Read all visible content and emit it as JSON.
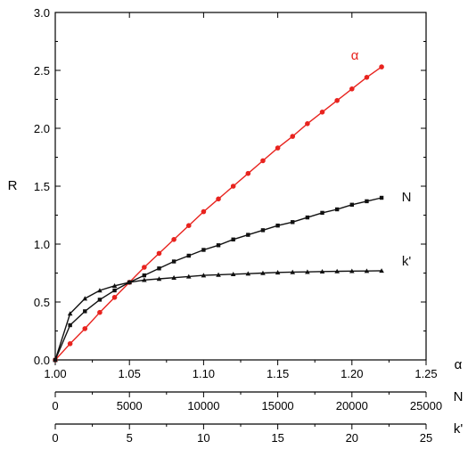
{
  "chart_data": {
    "type": "line",
    "ylabel": "R",
    "ylim": [
      0,
      3.0
    ],
    "yticks": [
      "0.0",
      "0.5",
      "1.0",
      "1.5",
      "2.0",
      "2.5",
      "3.0"
    ],
    "x_axes": [
      {
        "label": "α",
        "lim": [
          1.0,
          1.25
        ],
        "ticks": [
          "1.00",
          "1.05",
          "1.10",
          "1.15",
          "1.20",
          "1.25"
        ]
      },
      {
        "label": "N",
        "lim": [
          0,
          25000
        ],
        "ticks": [
          "0",
          "5000",
          "10000",
          "15000",
          "20000",
          "25000"
        ]
      },
      {
        "label": "k'",
        "lim": [
          0,
          25
        ],
        "ticks": [
          "0",
          "5",
          "10",
          "15",
          "20",
          "25"
        ]
      }
    ],
    "series": [
      {
        "name": "α",
        "axis": "α",
        "color": "#e8231e",
        "marker": "circle",
        "x": [
          1.0,
          1.01,
          1.02,
          1.03,
          1.04,
          1.05,
          1.06,
          1.07,
          1.08,
          1.09,
          1.1,
          1.11,
          1.12,
          1.13,
          1.14,
          1.15,
          1.16,
          1.17,
          1.18,
          1.19,
          1.2,
          1.21,
          1.22
        ],
        "y": [
          0.0,
          0.14,
          0.27,
          0.41,
          0.54,
          0.67,
          0.8,
          0.92,
          1.04,
          1.16,
          1.28,
          1.39,
          1.5,
          1.61,
          1.72,
          1.83,
          1.93,
          2.04,
          2.14,
          2.24,
          2.34,
          2.44,
          2.53
        ]
      },
      {
        "name": "N",
        "axis": "N",
        "color": "#111111",
        "marker": "square",
        "x": [
          0,
          1000,
          2000,
          3000,
          4000,
          5000,
          6000,
          7000,
          8000,
          9000,
          10000,
          11000,
          12000,
          13000,
          14000,
          15000,
          16000,
          17000,
          18000,
          19000,
          20000,
          21000,
          22000
        ],
        "y": [
          0.0,
          0.3,
          0.42,
          0.52,
          0.6,
          0.67,
          0.73,
          0.79,
          0.85,
          0.9,
          0.95,
          0.99,
          1.04,
          1.08,
          1.12,
          1.16,
          1.19,
          1.23,
          1.27,
          1.3,
          1.34,
          1.37,
          1.4
        ]
      },
      {
        "name": "k'",
        "axis": "k'",
        "color": "#111111",
        "marker": "triangle",
        "x": [
          0,
          1,
          2,
          3,
          4,
          5,
          6,
          7,
          8,
          9,
          10,
          11,
          12,
          13,
          14,
          15,
          16,
          17,
          18,
          19,
          20,
          21,
          22
        ],
        "y": [
          0.0,
          0.4,
          0.53,
          0.6,
          0.64,
          0.67,
          0.69,
          0.7,
          0.71,
          0.72,
          0.73,
          0.735,
          0.74,
          0.745,
          0.75,
          0.755,
          0.758,
          0.76,
          0.763,
          0.765,
          0.767,
          0.768,
          0.77
        ]
      }
    ],
    "grid": false,
    "legend": "inline labels at line ends"
  }
}
